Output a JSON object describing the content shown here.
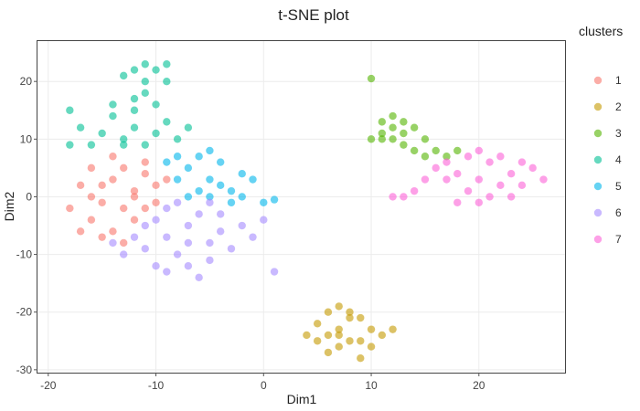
{
  "chart_data": {
    "type": "scatter",
    "title": "t-SNE plot",
    "xlabel": "Dim1",
    "ylabel": "Dim2",
    "xlim": [
      -21,
      28
    ],
    "ylim": [
      -30.5,
      27
    ],
    "x_ticks": [
      -20,
      -10,
      0,
      10,
      20
    ],
    "y_ticks": [
      -30,
      -20,
      -10,
      0,
      10,
      20
    ],
    "grid": true,
    "legend": {
      "title": "clusters",
      "position": "right"
    },
    "series": [
      {
        "name": "1",
        "color": "#F8766D",
        "points": [
          [
            -12,
            0
          ],
          [
            -14,
            3
          ],
          [
            -11,
            -2
          ],
          [
            -15,
            -1
          ],
          [
            -13,
            5
          ],
          [
            -10,
            2
          ],
          [
            -16,
            -4
          ],
          [
            -12,
            -4
          ],
          [
            -14,
            -6
          ],
          [
            -17,
            2
          ],
          [
            -11,
            4
          ],
          [
            -13,
            -2
          ],
          [
            -16,
            5
          ],
          [
            -18,
            -2
          ],
          [
            -12,
            1
          ],
          [
            -15,
            -7
          ],
          [
            -10,
            -1
          ],
          [
            -13,
            -8
          ],
          [
            -17,
            -6
          ],
          [
            -14,
            7
          ],
          [
            -11,
            6
          ],
          [
            -9,
            3
          ],
          [
            -15,
            2
          ],
          [
            -16,
            0
          ]
        ]
      },
      {
        "name": "2",
        "color": "#C49A00",
        "points": [
          [
            7,
            -23
          ],
          [
            8,
            -21
          ],
          [
            6,
            -24
          ],
          [
            9,
            -25
          ],
          [
            7,
            -26
          ],
          [
            5,
            -22
          ],
          [
            10,
            -23
          ],
          [
            8,
            -20
          ],
          [
            6,
            -27
          ],
          [
            9,
            -21
          ],
          [
            11,
            -24
          ],
          [
            4,
            -24
          ],
          [
            7,
            -19
          ],
          [
            8,
            -25
          ],
          [
            5,
            -25
          ],
          [
            10,
            -26
          ],
          [
            12,
            -23
          ],
          [
            6,
            -20
          ],
          [
            9,
            -28
          ],
          [
            7,
            -24
          ]
        ]
      },
      {
        "name": "3",
        "color": "#53B400",
        "points": [
          [
            12,
            12
          ],
          [
            11,
            13
          ],
          [
            13,
            11
          ],
          [
            12,
            10
          ],
          [
            14,
            12
          ],
          [
            11,
            11
          ],
          [
            13,
            13
          ],
          [
            15,
            10
          ],
          [
            12,
            14
          ],
          [
            16,
            8
          ],
          [
            17,
            7
          ],
          [
            14,
            8
          ],
          [
            15,
            7
          ],
          [
            13,
            9
          ],
          [
            18,
            8
          ],
          [
            10,
            10
          ],
          [
            11,
            10
          ],
          [
            10,
            20.5
          ]
        ]
      },
      {
        "name": "4",
        "color": "#00C094",
        "points": [
          [
            -11,
            23
          ],
          [
            -12,
            22
          ],
          [
            -10,
            22
          ],
          [
            -9,
            23
          ],
          [
            -13,
            21
          ],
          [
            -12,
            17
          ],
          [
            -11,
            18
          ],
          [
            -10,
            16
          ],
          [
            -14,
            14
          ],
          [
            -12,
            12
          ],
          [
            -10,
            11
          ],
          [
            -13,
            9
          ],
          [
            -15,
            11
          ],
          [
            -17,
            12
          ],
          [
            -16,
            9
          ],
          [
            -11,
            9
          ],
          [
            -9,
            13
          ],
          [
            -8,
            10
          ],
          [
            -14,
            16
          ],
          [
            -12,
            15
          ],
          [
            -13,
            10
          ],
          [
            -7,
            12
          ],
          [
            -18,
            15
          ],
          [
            -18,
            9
          ],
          [
            -11,
            20
          ],
          [
            -9,
            20
          ]
        ]
      },
      {
        "name": "5",
        "color": "#00B6EB",
        "points": [
          [
            -5,
            3
          ],
          [
            -7,
            5
          ],
          [
            -3,
            1
          ],
          [
            -6,
            1
          ],
          [
            -4,
            6
          ],
          [
            -8,
            3
          ],
          [
            -2,
            4
          ],
          [
            -6,
            7
          ],
          [
            -9,
            6
          ],
          [
            -3,
            -1
          ],
          [
            -5,
            0
          ],
          [
            -1,
            3
          ],
          [
            -7,
            0
          ],
          [
            -4,
            2
          ],
          [
            -2,
            0
          ],
          [
            0,
            -1
          ],
          [
            1,
            -0.5
          ],
          [
            -8,
            7
          ],
          [
            -5,
            8
          ]
        ]
      },
      {
        "name": "6",
        "color": "#A58AFF",
        "points": [
          [
            -7,
            -5
          ],
          [
            -9,
            -7
          ],
          [
            -5,
            -8
          ],
          [
            -10,
            -4
          ],
          [
            -8,
            -10
          ],
          [
            -6,
            -3
          ],
          [
            -11,
            -9
          ],
          [
            -4,
            -6
          ],
          [
            -9,
            -2
          ],
          [
            -7,
            -12
          ],
          [
            -12,
            -7
          ],
          [
            -5,
            -11
          ],
          [
            -3,
            -9
          ],
          [
            -10,
            -12
          ],
          [
            -6,
            -14
          ],
          [
            -2,
            -5
          ],
          [
            -8,
            -1
          ],
          [
            -13,
            -10
          ],
          [
            -4,
            -3
          ],
          [
            -11,
            -5
          ],
          [
            -1,
            -7
          ],
          [
            -7,
            -8
          ],
          [
            -9,
            -13
          ],
          [
            0,
            -4
          ],
          [
            1,
            -13
          ],
          [
            -5,
            -1
          ],
          [
            -14,
            -8
          ]
        ]
      },
      {
        "name": "7",
        "color": "#FB61D7",
        "points": [
          [
            20,
            3
          ],
          [
            22,
            2
          ],
          [
            18,
            4
          ],
          [
            21,
            6
          ],
          [
            19,
            1
          ],
          [
            23,
            4
          ],
          [
            17,
            3
          ],
          [
            24,
            2
          ],
          [
            20,
            -1
          ],
          [
            16,
            5
          ],
          [
            15,
            3
          ],
          [
            22,
            7
          ],
          [
            19,
            7
          ],
          [
            25,
            5
          ],
          [
            21,
            0
          ],
          [
            14,
            1
          ],
          [
            13,
            0
          ],
          [
            12,
            0
          ],
          [
            18,
            -1
          ],
          [
            23,
            0
          ],
          [
            26,
            3
          ],
          [
            17,
            6
          ],
          [
            20,
            8
          ],
          [
            24,
            6
          ]
        ]
      }
    ]
  }
}
